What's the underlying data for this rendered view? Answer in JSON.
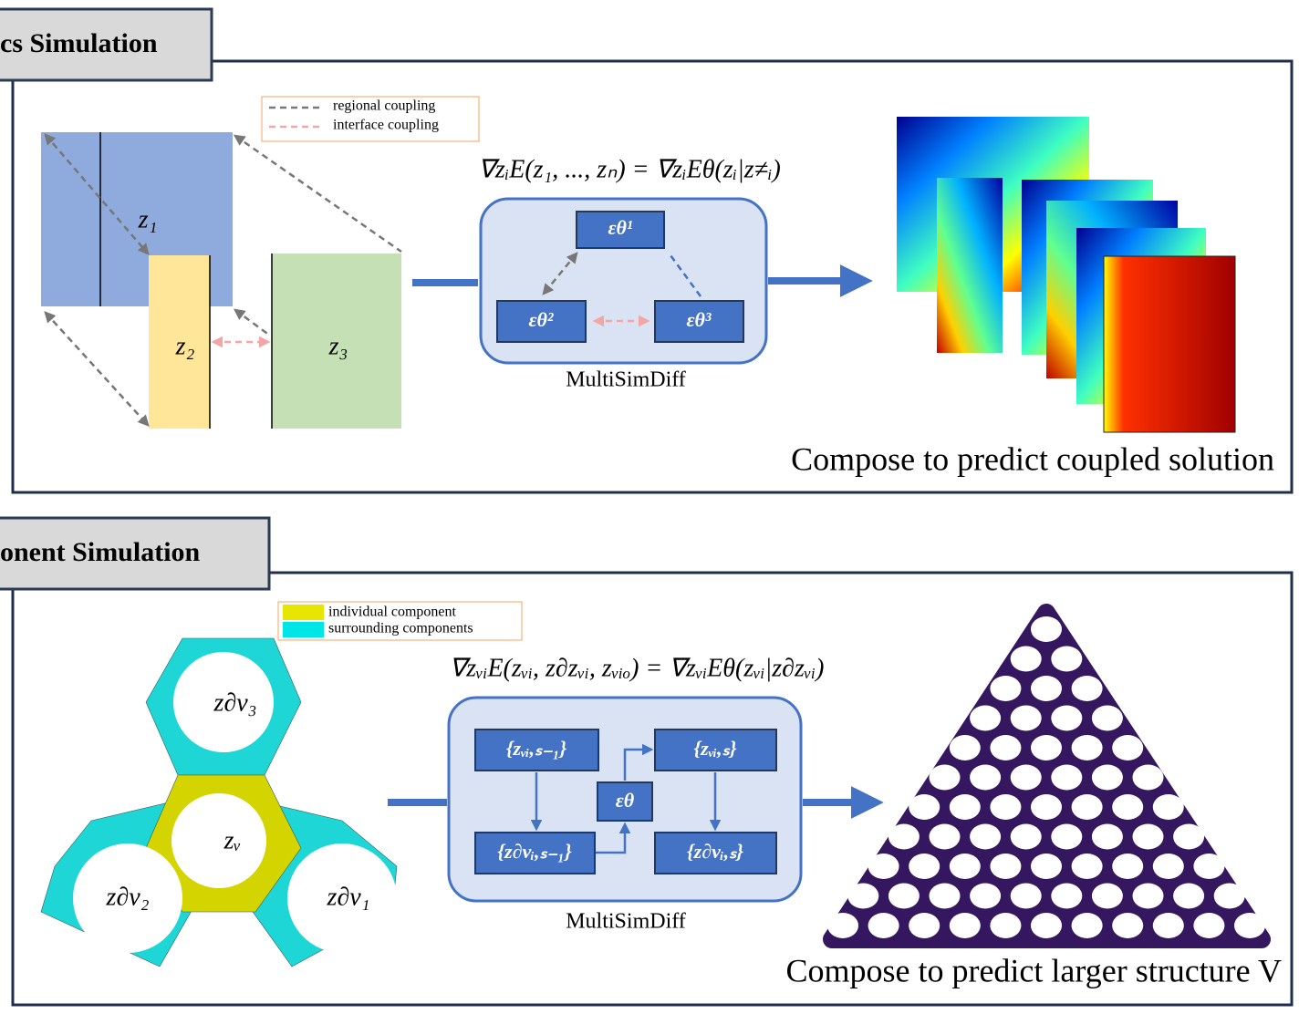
{
  "panels": [
    {
      "tab": "cs Simulation",
      "legend": [
        "regional coupling",
        "interface coupling"
      ],
      "labels": [
        "z₁",
        "z₂",
        "z₃"
      ],
      "formula": "∇zᵢE(z₁, ..., zₙ) = ∇zᵢEθ(zᵢ|z≠ᵢ)",
      "model_boxes": [
        "εθ¹",
        "εθ²",
        "εθ³"
      ],
      "model_name": "MultiSimDiff",
      "caption": "Compose to predict coupled solution"
    },
    {
      "tab": "onent Simulation",
      "legend": [
        "individual component",
        "surrounding components"
      ],
      "labels": [
        "z∂v₃",
        "zᵥ",
        "z∂v₂",
        "z∂v₁"
      ],
      "formula": "∇zᵥᵢE(zᵥᵢ, z∂zᵥᵢ, zᵥᵢₒ) = ∇zᵥᵢEθ(zᵥᵢ|z∂zᵥᵢ)",
      "model_boxes": [
        "{zᵥᵢ,ₛ₋₁}",
        "{zᵥᵢ,ₛ}",
        "εθ",
        "{z∂vᵢ,ₛ₋₁}",
        "{z∂vᵢ,ₛ}"
      ],
      "model_name": "MultiSimDiff",
      "caption": "Compose to predict larger structure V"
    }
  ]
}
